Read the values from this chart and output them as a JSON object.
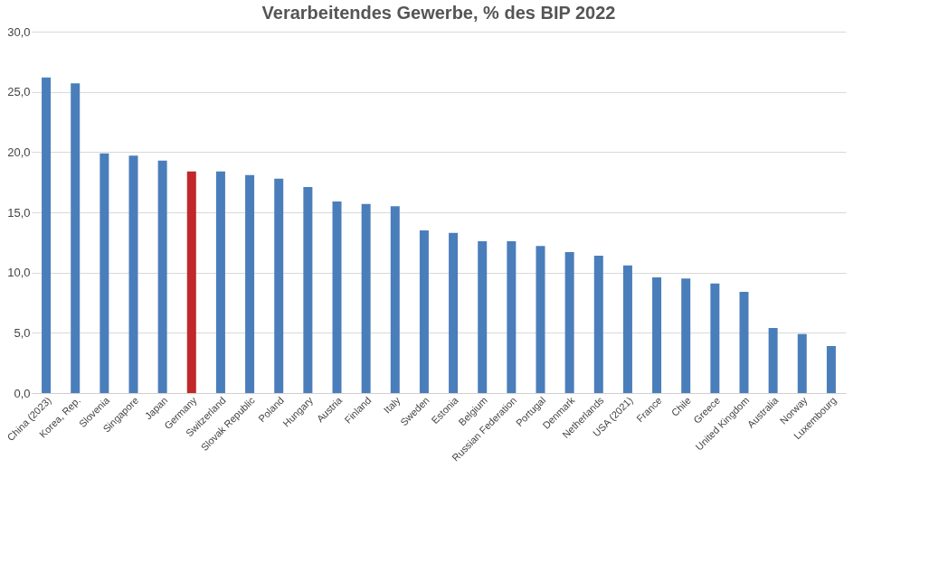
{
  "chart_data": {
    "type": "bar",
    "title": "Verarbeitendes Gewerbe, % des BIP 2022",
    "categories": [
      "China (2023)",
      "Korea, Rep.",
      "Slovenia",
      "Singapore",
      "Japan",
      "Germany",
      "Switzerland",
      "Slovak Republic",
      "Poland",
      "Hungary",
      "Austria",
      "Finland",
      "Italy",
      "Sweden",
      "Estonia",
      "Belgium",
      "Russian Federation",
      "Portugal",
      "Denmark",
      "Netherlands",
      "USA (2021)",
      "France",
      "Chile",
      "Greece",
      "United Kingdom",
      "Australia",
      "Norway",
      "Luxembourg"
    ],
    "values": [
      26.2,
      25.7,
      19.9,
      19.7,
      19.3,
      18.4,
      18.4,
      18.1,
      17.8,
      17.1,
      15.9,
      15.7,
      15.5,
      13.5,
      13.3,
      12.6,
      12.6,
      12.2,
      11.7,
      11.4,
      10.6,
      9.6,
      9.5,
      9.1,
      8.4,
      5.4,
      4.9,
      3.9
    ],
    "colors": [
      "#4a7ebb",
      "#4a7ebb",
      "#4a7ebb",
      "#4a7ebb",
      "#4a7ebb",
      "#c0282a",
      "#4a7ebb",
      "#4a7ebb",
      "#4a7ebb",
      "#4a7ebb",
      "#4a7ebb",
      "#4a7ebb",
      "#4a7ebb",
      "#4a7ebb",
      "#4a7ebb",
      "#4a7ebb",
      "#4a7ebb",
      "#4a7ebb",
      "#4a7ebb",
      "#4a7ebb",
      "#4a7ebb",
      "#4a7ebb",
      "#4a7ebb",
      "#4a7ebb",
      "#4a7ebb",
      "#4a7ebb",
      "#4a7ebb",
      "#4a7ebb"
    ],
    "ylim": [
      0,
      30
    ],
    "yticks": [
      {
        "value": 0,
        "label": "0,0"
      },
      {
        "value": 5,
        "label": "5,0"
      },
      {
        "value": 10,
        "label": "10,0"
      },
      {
        "value": 15,
        "label": "15,0"
      },
      {
        "value": 20,
        "label": "20,0"
      },
      {
        "value": 25,
        "label": "25,0"
      },
      {
        "value": 30,
        "label": "30,0"
      }
    ],
    "grid": "y"
  }
}
